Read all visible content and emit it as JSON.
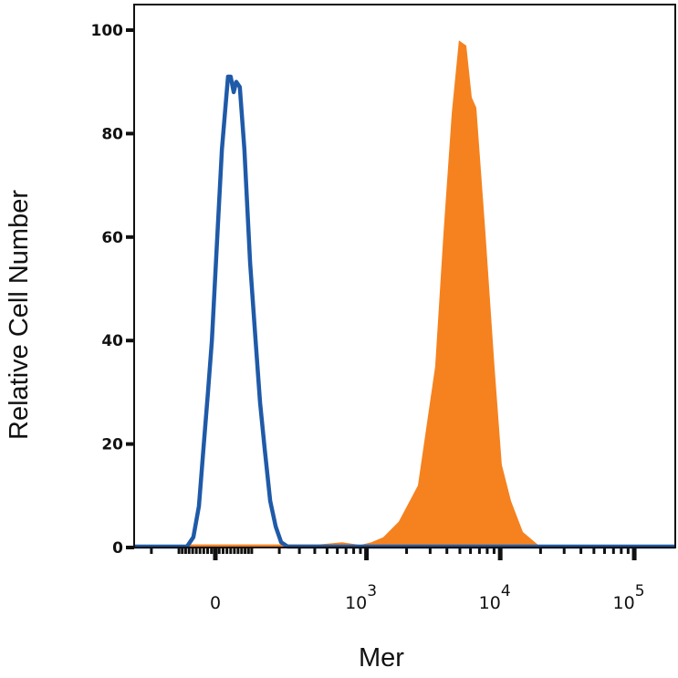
{
  "chart_data": {
    "type": "area",
    "xlabel": "Mer",
    "ylabel": "Relative Cell Number",
    "x_scale": "biexponential",
    "ylim": [
      0,
      100
    ],
    "yticks": [
      0,
      20,
      40,
      60,
      80,
      100
    ],
    "xticks": [
      {
        "value": 0,
        "base": "0",
        "exp": ""
      },
      {
        "value": 1000,
        "base": "10",
        "exp": "3"
      },
      {
        "value": 10000,
        "base": "10",
        "exp": "4"
      },
      {
        "value": 100000,
        "base": "10",
        "exp": "5"
      }
    ],
    "grid": false,
    "legend": "none",
    "series": [
      {
        "style": "filled",
        "color": "#f5821f",
        "points": [
          [
            -80,
            0.6
          ],
          [
            230,
            0.6
          ],
          [
            435,
            0.6
          ],
          [
            654,
            1
          ],
          [
            898,
            0.5
          ],
          [
            1089,
            1
          ],
          [
            1338,
            2
          ],
          [
            1748,
            5
          ],
          [
            2430,
            12
          ],
          [
            3270,
            35
          ],
          [
            3780,
            61
          ],
          [
            4350,
            84
          ],
          [
            4920,
            98
          ],
          [
            5580,
            97
          ],
          [
            6130,
            87
          ],
          [
            6630,
            85
          ],
          [
            7750,
            61
          ],
          [
            9070,
            35
          ],
          [
            10280,
            16
          ],
          [
            12030,
            9
          ],
          [
            14750,
            3
          ],
          [
            20220,
            0
          ]
        ]
      },
      {
        "style": "line",
        "color": "#1f5aa8",
        "points": [
          [
            -76,
            0
          ],
          [
            -58,
            2
          ],
          [
            -43,
            8
          ],
          [
            -31,
            19
          ],
          [
            -19,
            30
          ],
          [
            -9,
            40
          ],
          [
            5,
            60
          ],
          [
            17,
            77
          ],
          [
            26,
            85
          ],
          [
            33,
            91
          ],
          [
            40,
            91
          ],
          [
            48,
            88
          ],
          [
            55,
            90
          ],
          [
            65,
            89
          ],
          [
            78,
            77
          ],
          [
            95,
            55
          ],
          [
            112,
            40
          ],
          [
            127,
            28
          ],
          [
            143,
            19
          ],
          [
            163,
            9
          ],
          [
            185,
            4
          ],
          [
            208,
            1
          ],
          [
            238,
            0
          ]
        ]
      }
    ]
  }
}
